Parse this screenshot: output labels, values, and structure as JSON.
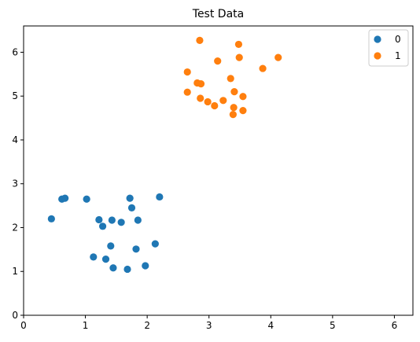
{
  "chart_data": {
    "type": "scatter",
    "title": "Test Data",
    "xlabel": "",
    "ylabel": "",
    "xlim": [
      0,
      6.3
    ],
    "ylim": [
      0,
      6.6
    ],
    "xticks": [
      0,
      1,
      2,
      3,
      4,
      5,
      6
    ],
    "yticks": [
      0,
      1,
      2,
      3,
      4,
      5,
      6
    ],
    "grid": false,
    "legend": "top-right",
    "series": [
      {
        "name": "0",
        "color": "#1f77b4",
        "points": [
          [
            0.45,
            2.2
          ],
          [
            0.62,
            2.65
          ],
          [
            0.67,
            2.67
          ],
          [
            1.02,
            2.65
          ],
          [
            1.22,
            2.18
          ],
          [
            1.28,
            2.03
          ],
          [
            1.43,
            2.17
          ],
          [
            1.58,
            2.12
          ],
          [
            1.72,
            2.67
          ],
          [
            1.75,
            2.45
          ],
          [
            1.85,
            2.17
          ],
          [
            2.2,
            2.7
          ],
          [
            1.13,
            1.33
          ],
          [
            1.33,
            1.28
          ],
          [
            1.41,
            1.58
          ],
          [
            1.45,
            1.08
          ],
          [
            1.68,
            1.05
          ],
          [
            1.82,
            1.51
          ],
          [
            1.97,
            1.13
          ],
          [
            2.13,
            1.63
          ]
        ]
      },
      {
        "name": "1",
        "color": "#ff7f0e",
        "points": [
          [
            2.85,
            6.27
          ],
          [
            3.48,
            6.18
          ],
          [
            3.14,
            5.8
          ],
          [
            3.49,
            5.88
          ],
          [
            4.12,
            5.88
          ],
          [
            3.87,
            5.63
          ],
          [
            2.65,
            5.55
          ],
          [
            2.81,
            5.3
          ],
          [
            2.87,
            5.28
          ],
          [
            3.35,
            5.4
          ],
          [
            2.65,
            5.09
          ],
          [
            2.86,
            4.95
          ],
          [
            2.98,
            4.87
          ],
          [
            3.09,
            4.78
          ],
          [
            3.23,
            4.9
          ],
          [
            3.41,
            5.1
          ],
          [
            3.55,
            4.99
          ],
          [
            3.4,
            4.74
          ],
          [
            3.39,
            4.58
          ],
          [
            3.55,
            4.67
          ]
        ]
      }
    ]
  }
}
